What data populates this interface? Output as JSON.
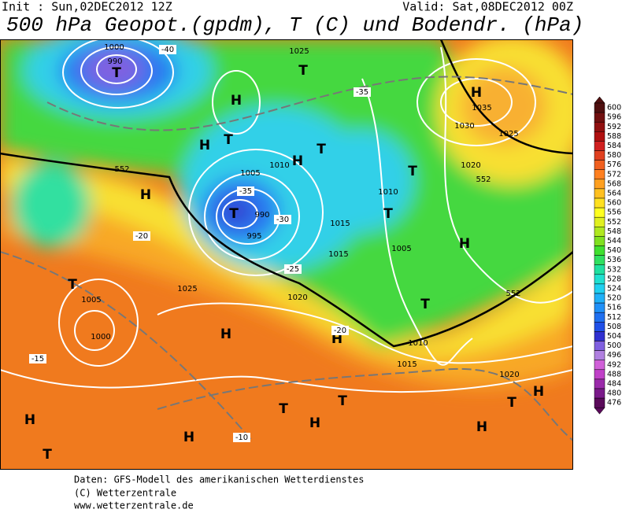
{
  "header": {
    "init": "Init : Sun,02DEC2012 12Z",
    "valid": "Valid: Sat,08DEC2012 00Z",
    "title": "500 hPa Geopot.(gpdm), T (C) und Bodendr. (hPa)"
  },
  "legend": {
    "levels": [
      600,
      596,
      592,
      588,
      584,
      580,
      576,
      572,
      568,
      564,
      560,
      556,
      552,
      548,
      544,
      540,
      536,
      532,
      528,
      524,
      520,
      516,
      512,
      508,
      504,
      500,
      496,
      492,
      488,
      484,
      480,
      476
    ],
    "colors": [
      "#501010",
      "#701010",
      "#901010",
      "#b01010",
      "#d02020",
      "#e04020",
      "#f06020",
      "#ff8020",
      "#ffa020",
      "#ffc020",
      "#ffe020",
      "#ffff20",
      "#e0f020",
      "#b0e820",
      "#80e020",
      "#40e030",
      "#30e060",
      "#20e0a0",
      "#20e0d0",
      "#20d0f0",
      "#20b0f8",
      "#2090f8",
      "#2070f0",
      "#2050e8",
      "#3030d0",
      "#8060e0",
      "#b080e0",
      "#d060d8",
      "#c040c8",
      "#9a2aaa",
      "#7a1a8a",
      "#5a0a5a"
    ]
  },
  "map": {
    "labels": [
      "T",
      "990",
      "1000",
      "H",
      "H",
      "T",
      "T",
      "1025",
      "T",
      "H",
      "T",
      "990",
      "995",
      "1005",
      "1010",
      "H",
      "T",
      "1005",
      "1000",
      "H",
      "1025",
      "H",
      "1035",
      "1030",
      "1025",
      "1020",
      "T",
      "T",
      "1010",
      "1015",
      "1015",
      "1005",
      "H",
      "T",
      "1020",
      "H",
      "T",
      "T",
      "H",
      "H",
      "H",
      "T",
      "H",
      "H",
      "T",
      "1020",
      "1015",
      "1010",
      "552",
      "552",
      "552",
      "-35",
      "-30",
      "-25",
      "-20",
      "-15",
      "-10",
      "-20",
      "-40",
      "-35"
    ]
  },
  "footer": [
    "Daten: GFS-Modell des amerikanischen Wetterdienstes",
    "(C) Wetterzentrale",
    "www.wetterzentrale.de"
  ]
}
